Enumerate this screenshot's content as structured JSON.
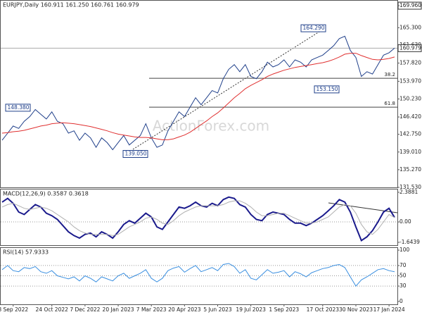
{
  "header": "EURJPY,Daily  160.911 161.250 160.761 160.979",
  "watermark": "ActionForex.com",
  "chart_data": [
    {
      "type": "line",
      "categories": [
        null,
        null,
        "8 Sep 2022",
        null,
        null,
        null,
        null,
        null,
        null,
        "24 Oct 2022",
        null,
        null,
        null,
        null,
        null,
        "7 Dec 2022",
        null,
        null,
        null,
        null,
        null,
        "20 Jan 2023",
        null,
        null,
        null,
        null,
        null,
        "7 Mar 2023",
        null,
        null,
        null,
        null,
        null,
        "20 Apr 2023",
        null,
        null,
        null,
        null,
        null,
        "5 Jun 2023",
        null,
        null,
        null,
        null,
        null,
        "19 Jul 2023",
        null,
        null,
        null,
        null,
        null,
        "1 Sep 2023",
        null,
        null,
        null,
        null,
        null,
        null,
        "17 Oct 2023",
        null,
        null,
        null,
        null,
        null,
        "30 Nov 2023",
        null,
        null,
        null,
        null,
        null,
        "17 Jan 2024",
        null
      ],
      "series": [
        {
          "color": "#1f3f8a",
          "values": [
            141.5,
            143.0,
            144.5,
            144.0,
            145.5,
            146.5,
            148.0,
            147.0,
            146.0,
            147.5,
            145.5,
            145.0,
            143.0,
            143.5,
            141.5,
            143.0,
            142.0,
            140.0,
            142.0,
            141.0,
            139.5,
            141.0,
            142.5,
            140.5,
            141.5,
            142.5,
            145.0,
            142.0,
            140.0,
            140.5,
            143.5,
            145.5,
            147.5,
            146.5,
            148.5,
            150.5,
            149.0,
            150.5,
            152.0,
            151.5,
            154.5,
            156.5,
            157.5,
            156.0,
            157.5,
            155.0,
            154.5,
            156.0,
            158.0,
            157.0,
            157.5,
            158.5,
            157.0,
            158.5,
            158.0,
            157.0,
            158.5,
            159.0,
            159.5,
            160.5,
            161.5,
            163.0,
            163.5,
            160.5,
            159.0,
            155.0,
            156.0,
            155.5,
            157.5,
            159.5,
            160.0,
            160.979
          ]
        },
        {
          "color": "#e03030",
          "values": [
            143.0,
            143.1,
            143.3,
            143.4,
            143.6,
            143.9,
            144.2,
            144.5,
            144.7,
            145.0,
            145.1,
            145.2,
            145.1,
            145.0,
            144.8,
            144.6,
            144.4,
            144.1,
            143.8,
            143.5,
            143.1,
            142.8,
            142.6,
            142.4,
            142.2,
            142.1,
            142.1,
            142.0,
            141.8,
            141.6,
            141.6,
            141.8,
            142.2,
            142.6,
            143.2,
            144.0,
            144.8,
            145.6,
            146.5,
            147.3,
            148.3,
            149.4,
            150.5,
            151.4,
            152.4,
            153.1,
            153.7,
            154.3,
            155.0,
            155.5,
            155.9,
            156.3,
            156.6,
            156.9,
            157.1,
            157.3,
            157.5,
            157.7,
            157.9,
            158.2,
            158.6,
            159.1,
            159.7,
            159.9,
            159.9,
            159.4,
            159.0,
            158.6,
            158.5,
            158.6,
            158.8,
            159.1
          ]
        }
      ],
      "ylim": [
        131.53,
        171.16
      ],
      "yticks": [
        {
          "value": 131.53,
          "label": "131.530"
        },
        {
          "value": 135.27,
          "label": "135.270"
        },
        {
          "value": 139.01,
          "label": "139.010"
        },
        {
          "value": 142.75,
          "label": "142.750"
        },
        {
          "value": 146.42,
          "label": "146.420"
        },
        {
          "value": 150.23,
          "label": "150.230"
        },
        {
          "value": 153.97,
          "label": "153.970"
        },
        {
          "value": 157.82,
          "label": "157.820"
        },
        {
          "value": 161.63,
          "label": "161.630"
        },
        {
          "value": 165.3,
          "label": "165.300"
        },
        {
          "value": 169.96,
          "label": "169.960"
        }
      ],
      "price_tag": {
        "value": 160.979,
        "label": "160.979"
      },
      "levels": [
        {
          "value": 154.6,
          "label": "38.2"
        },
        {
          "value": 148.5,
          "label": "61.8"
        }
      ],
      "annotations": [
        {
          "value": 148.38,
          "label": "148.380"
        },
        {
          "value": 139.05,
          "label": "139.050"
        },
        {
          "value": 164.29,
          "label": "164.290"
        },
        {
          "value": 153.15,
          "label": "153.150"
        }
      ]
    },
    {
      "type": "line",
      "title": "MACD(12,26,9) 0.3587 0.3618",
      "series": [
        {
          "color": "#1a1a8c",
          "values": [
            1.6,
            1.9,
            1.5,
            0.8,
            0.6,
            1.0,
            1.4,
            1.2,
            0.7,
            0.5,
            0.2,
            -0.3,
            -0.8,
            -1.1,
            -1.3,
            -1.0,
            -0.9,
            -1.2,
            -0.8,
            -1.0,
            -1.3,
            -0.8,
            -0.2,
            0.1,
            -0.1,
            0.3,
            0.7,
            0.4,
            -0.4,
            -0.6,
            0.0,
            0.6,
            1.2,
            1.1,
            1.3,
            1.6,
            1.3,
            1.2,
            1.5,
            1.3,
            1.8,
            2.0,
            1.9,
            1.4,
            1.2,
            0.6,
            0.2,
            0.1,
            0.6,
            0.8,
            0.7,
            0.6,
            0.2,
            -0.1,
            -0.1,
            -0.3,
            -0.1,
            0.2,
            0.5,
            0.9,
            1.3,
            1.8,
            1.6,
            0.8,
            -0.4,
            -1.5,
            -1.2,
            -0.7,
            0.0,
            0.8,
            1.1,
            0.3587
          ]
        },
        {
          "color": "#b0b0b0",
          "values": [
            1.2,
            1.4,
            1.5,
            1.3,
            1.1,
            1.0,
            1.1,
            1.2,
            1.1,
            0.9,
            0.6,
            0.3,
            0.0,
            -0.4,
            -0.7,
            -0.9,
            -1.0,
            -1.0,
            -1.0,
            -1.0,
            -1.1,
            -1.0,
            -0.7,
            -0.4,
            -0.2,
            0.0,
            0.3,
            0.4,
            0.2,
            -0.1,
            -0.2,
            0.1,
            0.5,
            0.8,
            1.0,
            1.2,
            1.3,
            1.3,
            1.3,
            1.3,
            1.4,
            1.6,
            1.7,
            1.7,
            1.5,
            1.2,
            0.8,
            0.5,
            0.5,
            0.6,
            0.7,
            0.7,
            0.5,
            0.3,
            0.1,
            -0.1,
            -0.1,
            0.0,
            0.2,
            0.4,
            0.8,
            1.2,
            1.4,
            1.3,
            0.7,
            -0.2,
            -0.8,
            -1.0,
            -0.6,
            0.0,
            0.6,
            0.3618
          ]
        }
      ],
      "ylim": [
        -1.87,
        2.67
      ],
      "yticks": [
        {
          "value": 2.3881,
          "label": "2.3881"
        },
        {
          "value": 0,
          "label": "0.00"
        },
        {
          "value": -1.6439,
          "label": "-1.6439"
        }
      ]
    },
    {
      "type": "line",
      "title": "RSI(14) 57.9333",
      "series": [
        {
          "color": "#3a8fe0",
          "values": [
            62,
            70,
            60,
            58,
            66,
            64,
            68,
            58,
            55,
            60,
            50,
            47,
            44,
            48,
            40,
            50,
            45,
            38,
            48,
            44,
            40,
            50,
            55,
            45,
            50,
            55,
            62,
            45,
            38,
            45,
            60,
            65,
            68,
            57,
            64,
            70,
            58,
            62,
            66,
            60,
            72,
            74,
            68,
            55,
            62,
            45,
            42,
            52,
            62,
            55,
            57,
            60,
            48,
            58,
            54,
            48,
            56,
            60,
            64,
            66,
            70,
            72,
            66,
            48,
            30,
            42,
            48,
            55,
            62,
            64,
            60,
            57.9333
          ]
        }
      ],
      "ylim": [
        -5.6,
        105.6
      ],
      "yticks": [
        100,
        70,
        50,
        30,
        0
      ]
    }
  ]
}
